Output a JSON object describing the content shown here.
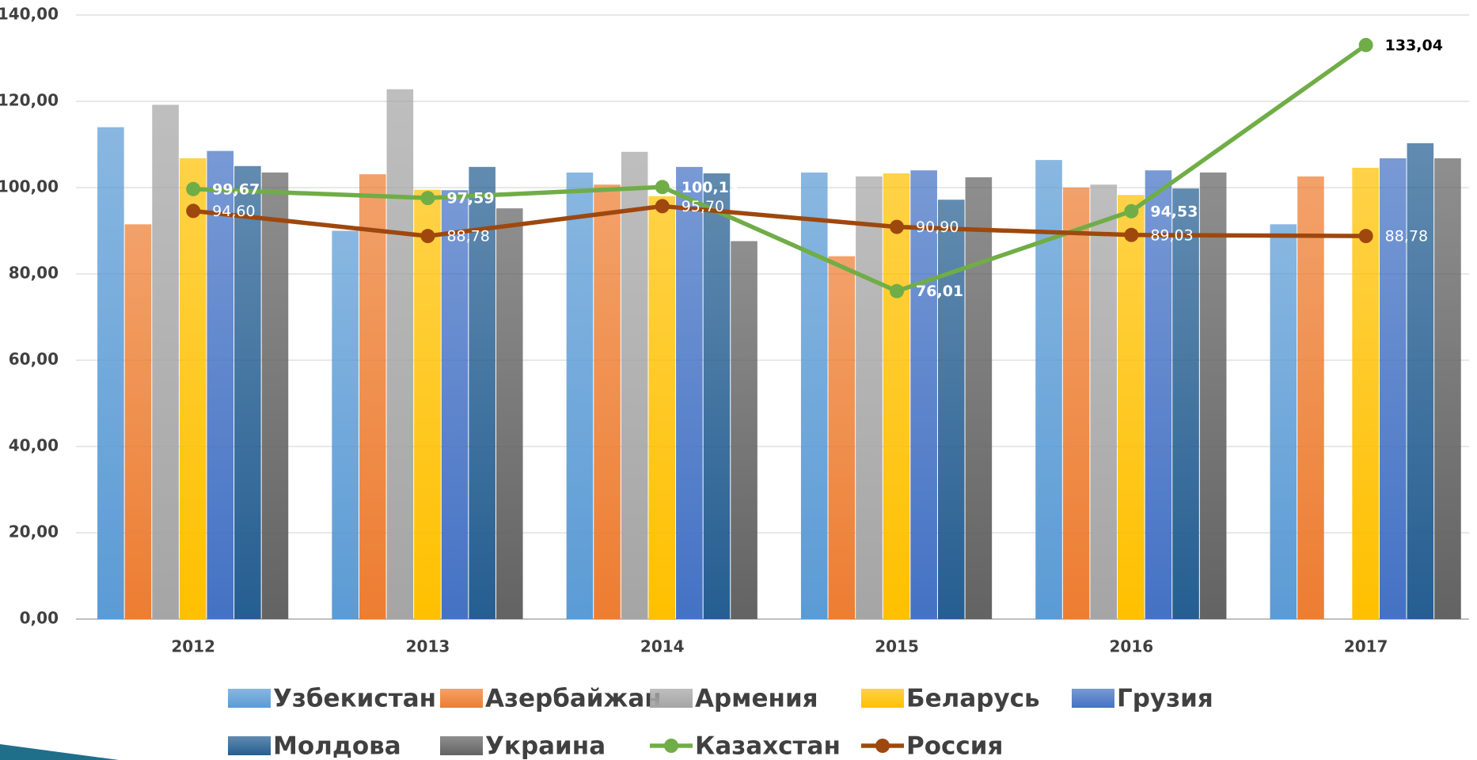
{
  "chart_data": {
    "type": "bar",
    "categories": [
      "2012",
      "2013",
      "2014",
      "2015",
      "2016",
      "2017"
    ],
    "ylim": [
      0,
      140
    ],
    "yticks": [
      {
        "value": 0,
        "label": "0,00"
      },
      {
        "value": 20,
        "label": "20,00"
      },
      {
        "value": 40,
        "label": "40,00"
      },
      {
        "value": 60,
        "label": "60,00"
      },
      {
        "value": 80,
        "label": "80,00"
      },
      {
        "value": 100,
        "label": "100,00"
      },
      {
        "value": 120,
        "label": "120,00"
      },
      {
        "value": 140,
        "label": "140,00"
      }
    ],
    "grid": true,
    "legend": "bottom",
    "series": [
      {
        "name": "Узбекистан",
        "type": "bar",
        "color": "#5b9bd5",
        "values": [
          114.0,
          90.0,
          103.5,
          103.5,
          106.4,
          91.5
        ]
      },
      {
        "name": "Азербайжан",
        "type": "bar",
        "color": "#ed7d31",
        "values": [
          91.5,
          103.1,
          100.7,
          84.1,
          100.0,
          102.6
        ]
      },
      {
        "name": "Армения",
        "type": "bar",
        "color": "#a5a5a5",
        "values": [
          119.2,
          122.8,
          108.3,
          102.6,
          100.7,
          null
        ]
      },
      {
        "name": "Беларусь",
        "type": "bar",
        "color": "#ffc000",
        "values": [
          106.8,
          99.5,
          98.0,
          103.3,
          98.3,
          104.6
        ]
      },
      {
        "name": "Грузия",
        "type": "bar",
        "color": "#4472c4",
        "values": [
          108.5,
          99.4,
          104.8,
          104.0,
          104.0,
          106.8
        ]
      },
      {
        "name": "Молдова",
        "type": "bar",
        "color": "#255e91",
        "values": [
          105.0,
          104.8,
          103.3,
          97.2,
          99.8,
          110.3
        ]
      },
      {
        "name": "Украина",
        "type": "bar",
        "color": "#636363",
        "values": [
          103.5,
          95.2,
          87.6,
          102.4,
          103.5,
          106.8
        ]
      },
      {
        "name": "Казахстан",
        "type": "line",
        "color": "#70ad47",
        "values": [
          99.67,
          97.59,
          100.13,
          76.01,
          94.53,
          133.04
        ],
        "value_labels": [
          "99,67",
          "97,59",
          "100,13",
          "76,01",
          "94,53",
          "133,04"
        ]
      },
      {
        "name": "Россия",
        "type": "line",
        "color": "#9e480e",
        "values": [
          94.6,
          88.78,
          95.7,
          90.9,
          89.03,
          88.78
        ],
        "value_labels": [
          "94,60",
          "88,78",
          "95,70",
          "90,90",
          "89,03",
          "88,78"
        ]
      }
    ]
  }
}
